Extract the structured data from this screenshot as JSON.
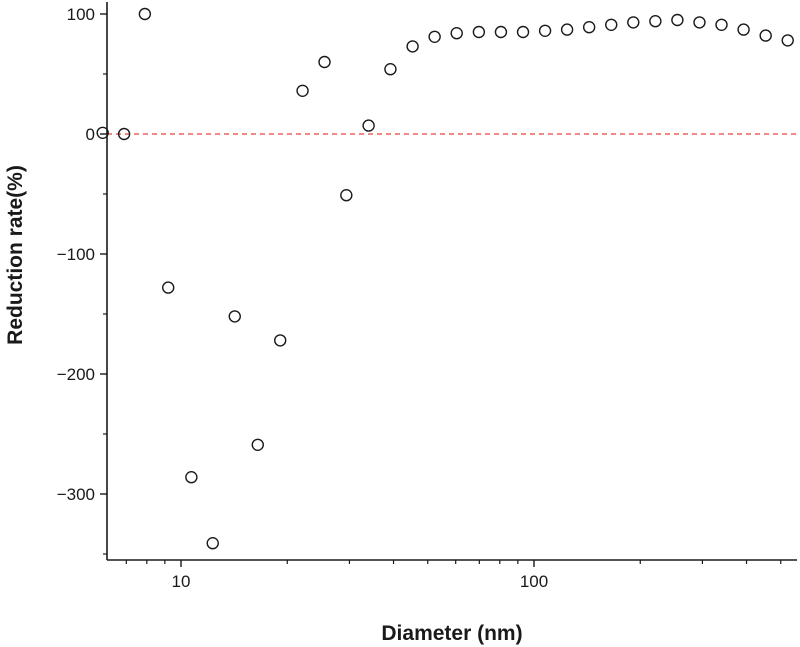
{
  "chart_data": {
    "type": "scatter",
    "xlabel": "Diameter (nm)",
    "ylabel": "Reduction rate(%)",
    "x_scale": "log",
    "xlim": [
      6,
      570
    ],
    "ylim": [
      -350,
      100
    ],
    "x_ticks": [
      {
        "value": 10,
        "label": "10"
      },
      {
        "value": 100,
        "label": "100"
      }
    ],
    "y_ticks": [
      {
        "value": 100,
        "label": "100"
      },
      {
        "value": 0,
        "label": "0"
      },
      {
        "value": -100,
        "label": "−100"
      },
      {
        "value": -200,
        "label": "−200"
      },
      {
        "value": -300,
        "label": "−300"
      }
    ],
    "reference_line": {
      "y": 0,
      "color": "#e8413c",
      "style": "dashed"
    },
    "marker": {
      "shape": "open-circle",
      "color": "#1a1a1a"
    },
    "grid": false,
    "points": [
      {
        "x": 6.0,
        "y": 1
      },
      {
        "x": 6.9,
        "y": 0
      },
      {
        "x": 7.9,
        "y": 100
      },
      {
        "x": 9.2,
        "y": -128
      },
      {
        "x": 10.7,
        "y": -286
      },
      {
        "x": 12.3,
        "y": -341
      },
      {
        "x": 14.2,
        "y": -152
      },
      {
        "x": 16.5,
        "y": -259
      },
      {
        "x": 19.1,
        "y": -172
      },
      {
        "x": 22.1,
        "y": 36
      },
      {
        "x": 25.5,
        "y": 60
      },
      {
        "x": 29.4,
        "y": -51
      },
      {
        "x": 34.0,
        "y": 7
      },
      {
        "x": 39.2,
        "y": 54
      },
      {
        "x": 45.3,
        "y": 73
      },
      {
        "x": 52.3,
        "y": 81
      },
      {
        "x": 60.4,
        "y": 84
      },
      {
        "x": 69.8,
        "y": 85
      },
      {
        "x": 80.6,
        "y": 85
      },
      {
        "x": 93.1,
        "y": 85
      },
      {
        "x": 107.5,
        "y": 86
      },
      {
        "x": 124.1,
        "y": 87
      },
      {
        "x": 143.3,
        "y": 89
      },
      {
        "x": 165.5,
        "y": 91
      },
      {
        "x": 191.1,
        "y": 93
      },
      {
        "x": 220.7,
        "y": 94
      },
      {
        "x": 254.8,
        "y": 95
      },
      {
        "x": 294.3,
        "y": 93
      },
      {
        "x": 339.8,
        "y": 91
      },
      {
        "x": 392.4,
        "y": 87
      },
      {
        "x": 453.2,
        "y": 82
      },
      {
        "x": 523.3,
        "y": 78
      }
    ]
  }
}
